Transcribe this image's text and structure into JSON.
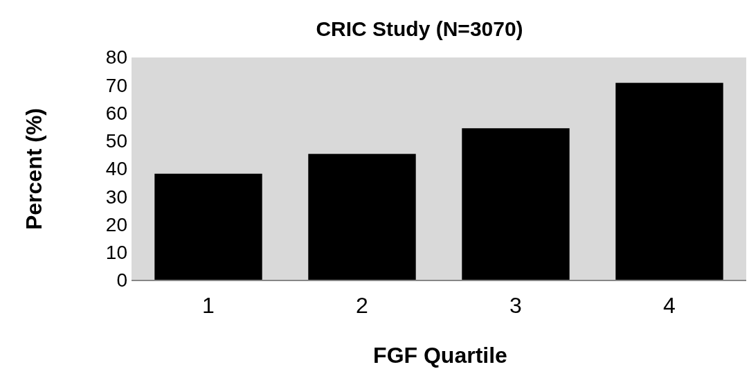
{
  "chart_data": {
    "type": "bar",
    "title": "CRIC Study (N=3070)",
    "xlabel": "FGF Quartile",
    "ylabel": "Percent (%)",
    "categories": [
      "1",
      "2",
      "3",
      "4"
    ],
    "values": [
      38.3,
      45.4,
      54.6,
      70.9
    ],
    "color": "#000000",
    "ylim": [
      0,
      80
    ],
    "yticks": [
      0,
      10,
      20,
      30,
      40,
      50,
      60,
      70,
      80
    ],
    "grid": false
  }
}
